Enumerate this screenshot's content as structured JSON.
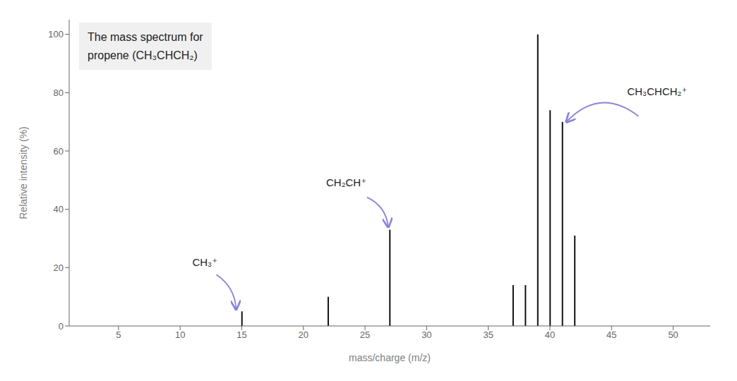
{
  "chart_data": {
    "type": "bar",
    "title": "The mass spectrum for\npropene (CH₃CHCH₂)",
    "x_label": "mass/charge (m/z)",
    "y_label": "Relative intensity (%)",
    "x": [
      15,
      22,
      27,
      37,
      38,
      39,
      40,
      41,
      42
    ],
    "values": [
      5,
      10,
      33,
      14,
      14,
      100,
      74,
      70,
      31
    ],
    "color": "#111111",
    "xlim": [
      1,
      53
    ],
    "ylim": [
      0,
      105
    ],
    "xticks": [
      5,
      10,
      15,
      20,
      25,
      30,
      35,
      40,
      45,
      50
    ],
    "yticks": [
      0,
      20,
      40,
      60,
      80,
      100
    ],
    "grid": false,
    "annotations": [
      {
        "text": "CH₃⁺",
        "x": 15,
        "y": 5
      },
      {
        "text": "CH₂CH⁺",
        "x": 27,
        "y": 33
      },
      {
        "text": "CH₃CHCH₂⁺",
        "x": 41,
        "y": 70
      }
    ]
  }
}
